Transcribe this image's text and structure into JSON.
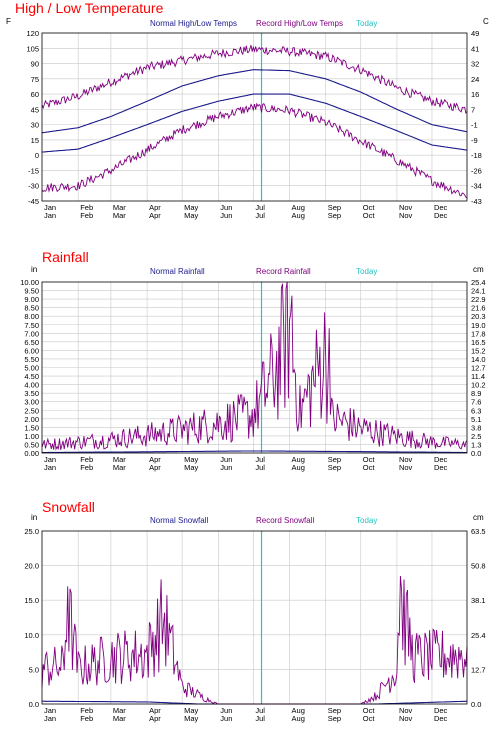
{
  "colors": {
    "title": "#ff0000",
    "normal": "#1a1a8c",
    "record": "#800080",
    "today": "#22c4c4",
    "grid": "#c8c8c8",
    "axis": "#000000"
  },
  "chart_data": [
    {
      "type": "line",
      "title": "High / Low Temperature",
      "left_unit": "F",
      "right_unit": "C",
      "x_labels": [
        "Jan",
        "Feb",
        "Mar",
        "Apr",
        "May",
        "Jun",
        "Jul",
        "Aug",
        "Sep",
        "Oct",
        "Nov",
        "Dec"
      ],
      "x_range_days": [
        1,
        365
      ],
      "today_day": 189,
      "y_ticks_left": [
        "120",
        "105",
        "90",
        "75",
        "60",
        "45",
        "30",
        "15",
        "0",
        "-15",
        "-30",
        "-45"
      ],
      "y_ticks_right": [
        "49",
        "41",
        "32",
        "24",
        "16",
        "7",
        "-1",
        "-9",
        "-18",
        "-26",
        "-34",
        "-43"
      ],
      "ylim": [
        -45,
        120
      ],
      "grid": true,
      "legend": [
        "Normal High/Low Temps",
        "Record High/Low Temps",
        "Today"
      ],
      "series": [
        {
          "name": "Normal High/Low Temps",
          "kind": "normal_high",
          "x": [
            "Jan 1",
            "Feb 1",
            "Mar 1",
            "Apr 1",
            "May 1",
            "Jun 1",
            "Jul 1",
            "Aug 1",
            "Sep 1",
            "Oct 1",
            "Nov 1",
            "Dec 1",
            "Dec 31"
          ],
          "values": [
            22,
            27,
            38,
            53,
            68,
            78,
            84,
            83,
            75,
            62,
            45,
            30,
            23
          ]
        },
        {
          "name": "Normal High/Low Temps",
          "kind": "normal_low",
          "x": [
            "Jan 1",
            "Feb 1",
            "Mar 1",
            "Apr 1",
            "May 1",
            "Jun 1",
            "Jul 1",
            "Aug 1",
            "Sep 1",
            "Oct 1",
            "Nov 1",
            "Dec 1",
            "Dec 31"
          ],
          "values": [
            3,
            6,
            17,
            30,
            43,
            53,
            60,
            60,
            51,
            38,
            24,
            10,
            5
          ]
        },
        {
          "name": "Record High/Low Temps",
          "kind": "record_high",
          "x": [
            "Jan 1",
            "Feb 1",
            "Mar 1",
            "Apr 1",
            "May 1",
            "Jun 1",
            "Jul 1",
            "Aug 1",
            "Sep 1",
            "Oct 1",
            "Nov 1",
            "Dec 1",
            "Dec 31"
          ],
          "values": [
            48,
            58,
            72,
            86,
            93,
            100,
            104,
            102,
            97,
            84,
            66,
            53,
            45
          ]
        },
        {
          "name": "Record High/Low Temps",
          "kind": "record_low",
          "x": [
            "Jan 1",
            "Feb 1",
            "Mar 1",
            "Apr 1",
            "May 1",
            "Jun 1",
            "Jul 1",
            "Aug 1",
            "Sep 1",
            "Oct 1",
            "Nov 1",
            "Dec 1",
            "Dec 31"
          ],
          "values": [
            -32,
            -30,
            -15,
            5,
            25,
            38,
            47,
            44,
            32,
            14,
            -5,
            -25,
            -40
          ]
        }
      ]
    },
    {
      "type": "line",
      "title": "Rainfall",
      "left_unit": "in",
      "right_unit": "cm",
      "x_labels": [
        "Jan",
        "Feb",
        "Mar",
        "Apr",
        "May",
        "Jun",
        "Jul",
        "Aug",
        "Sep",
        "Oct",
        "Nov",
        "Dec"
      ],
      "x_range_days": [
        1,
        365
      ],
      "today_day": 189,
      "y_ticks_left": [
        "10.00",
        "9.50",
        "9.00",
        "8.50",
        "8.00",
        "7.50",
        "7.00",
        "6.50",
        "6.00",
        "5.50",
        "5.00",
        "4.50",
        "4.00",
        "3.50",
        "3.00",
        "2.50",
        "2.00",
        "1.50",
        "1.00",
        "0.50",
        "0.00"
      ],
      "y_ticks_right": [
        "25.4",
        "24.1",
        "22.9",
        "21.6",
        "20.3",
        "19.0",
        "17.8",
        "16.5",
        "15.2",
        "14.0",
        "12.7",
        "11.4",
        "10.2",
        "8.9",
        "7.6",
        "6.3",
        "5.1",
        "3.8",
        "2.5",
        "1.3",
        "0.0"
      ],
      "ylim": [
        0,
        10
      ],
      "grid": true,
      "legend": [
        "Normal Rainfall",
        "Record Rainfall",
        "Today"
      ],
      "series": [
        {
          "name": "Normal Rainfall",
          "kind": "normal",
          "x": [
            "Jan 1",
            "Apr 1",
            "Jul 1",
            "Oct 1",
            "Dec 31"
          ],
          "values": [
            0.03,
            0.07,
            0.12,
            0.08,
            0.03
          ]
        },
        {
          "name": "Record Rainfall",
          "kind": "record",
          "x": [
            "Jan 1",
            "Feb 1",
            "Mar 1",
            "Apr 1",
            "May 1",
            "Jun 1",
            "Jul 1",
            "Jul 20",
            "Aug 1",
            "Aug 10",
            "Sep 1",
            "Sep 5",
            "Oct 1",
            "Nov 1",
            "Dec 1",
            "Dec 31"
          ],
          "values": [
            0.6,
            0.8,
            1.0,
            1.3,
            1.7,
            2.2,
            2.8,
            6.0,
            9.2,
            3.0,
            7.3,
            2.6,
            1.8,
            1.2,
            0.8,
            0.6
          ]
        }
      ]
    },
    {
      "type": "line",
      "title": "Snowfall",
      "left_unit": "in",
      "right_unit": "cm",
      "x_labels": [
        "Jan",
        "Feb",
        "Mar",
        "Apr",
        "May",
        "Jun",
        "Jul",
        "Aug",
        "Sep",
        "Oct",
        "Nov",
        "Dec"
      ],
      "x_range_days": [
        1,
        365
      ],
      "today_day": 189,
      "y_ticks_left": [
        "25.0",
        "20.0",
        "15.0",
        "10.0",
        "5.0",
        "0.0"
      ],
      "y_ticks_right": [
        "63.5",
        "50.8",
        "38.1",
        "25.4",
        "12.7",
        "0.0"
      ],
      "ylim": [
        0,
        25
      ],
      "grid": true,
      "legend": [
        "Normal Snowfall",
        "Record Snowfall",
        "Today"
      ],
      "series": [
        {
          "name": "Normal Snowfall",
          "kind": "normal",
          "x": [
            "Jan 1",
            "Apr 1",
            "May 15",
            "Oct 15",
            "Dec 31"
          ],
          "values": [
            0.4,
            0.3,
            0.0,
            0.0,
            0.4
          ]
        },
        {
          "name": "Record Snowfall",
          "kind": "record",
          "x": [
            "Jan 1",
            "Jan 20",
            "Jan 22",
            "Feb 1",
            "Mar 1",
            "Apr 1",
            "Apr 15",
            "May 1",
            "May 20",
            "Jun 1",
            "Oct 1",
            "Oct 15",
            "Nov 1",
            "Nov 3",
            "Nov 15",
            "Dec 1",
            "Dec 31"
          ],
          "values": [
            6.0,
            6.5,
            17.0,
            6.0,
            8.0,
            8.5,
            14.5,
            3.0,
            1.0,
            0.0,
            0.0,
            1.5,
            6.0,
            18.5,
            8.0,
            8.0,
            8.5
          ]
        }
      ]
    }
  ]
}
